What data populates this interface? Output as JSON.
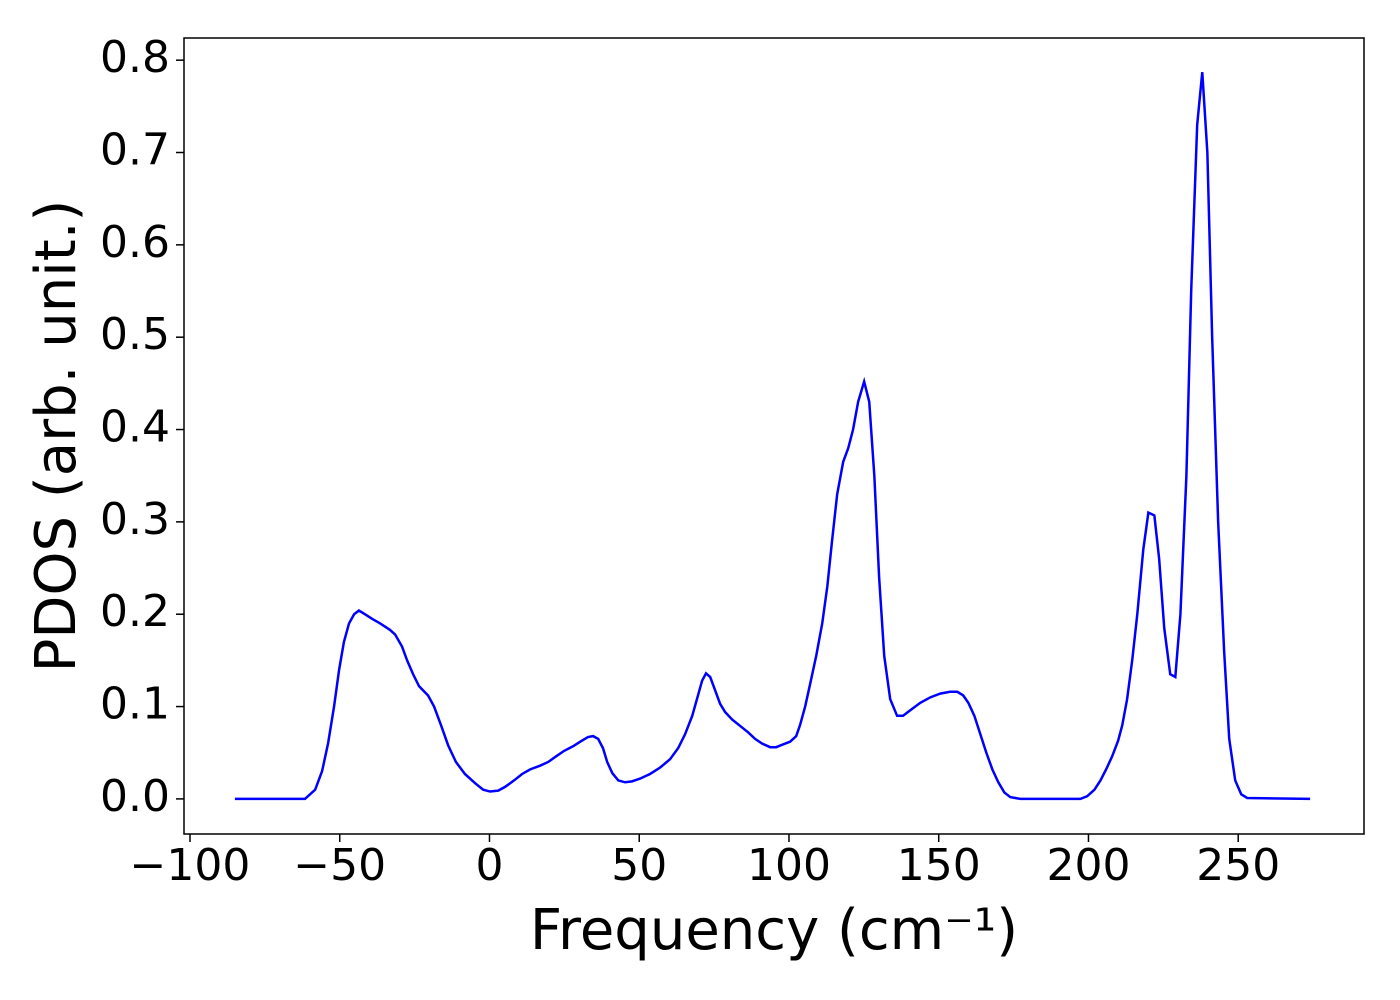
{
  "chart_data": {
    "type": "line",
    "xlabel": "Frequency (cm⁻¹)",
    "ylabel": "PDOS (arb. unit.)",
    "x": [
      -85,
      -61.6,
      -58.2,
      -55.9,
      -53.9,
      -51.9,
      -50.2,
      -48.6,
      -46.9,
      -45.2,
      -43.6,
      -41.6,
      -39.2,
      -36.5,
      -33.2,
      -31.5,
      -29.2,
      -27.5,
      -25.5,
      -23.5,
      -20.5,
      -18.5,
      -16.2,
      -13.8,
      -11.2,
      -8.2,
      -4.8,
      -2.1,
      0.2,
      2.9,
      5.2,
      8.2,
      10.9,
      13.6,
      16.9,
      19.6,
      22.2,
      24.9,
      27.9,
      30.3,
      32.9,
      34.6,
      36.3,
      37.9,
      39.3,
      41,
      43,
      45.3,
      47.6,
      50.3,
      53.6,
      57,
      60.3,
      63,
      65.3,
      67.7,
      69.7,
      71,
      72.3,
      73.7,
      75.3,
      77,
      78.7,
      81,
      83.7,
      86.4,
      88.7,
      91,
      93.7,
      95.7,
      98,
      100.4,
      102.4,
      103.7,
      105.4,
      107.1,
      109.1,
      111.1,
      112.8,
      114.4,
      116.1,
      118.1,
      119.8,
      121.4,
      123.1,
      125.1,
      126.8,
      128.5,
      130.1,
      131.8,
      133.8,
      136.1,
      138.1,
      140.5,
      143.8,
      147.2,
      150.5,
      153.8,
      156.2,
      158.2,
      159.9,
      161.9,
      163.9,
      165.9,
      167.9,
      169.9,
      171.9,
      173.9,
      177.2,
      197.3,
      199.6,
      202,
      204,
      205.9,
      207.9,
      209.9,
      211.3,
      212.9,
      214.6,
      216.3,
      218.3,
      220,
      222,
      223.6,
      225.3,
      227.3,
      229,
      230.7,
      232.7,
      234.3,
      236.3,
      238,
      239.7,
      241.3,
      243.3,
      245.3,
      247,
      249,
      251,
      253,
      274
    ],
    "series": [
      {
        "color": "#0000ff",
        "values": [
          0,
          0,
          0.01,
          0.03,
          0.06,
          0.1,
          0.14,
          0.17,
          0.19,
          0.2,
          0.204,
          0.2,
          0.195,
          0.19,
          0.183,
          0.178,
          0.165,
          0.15,
          0.135,
          0.122,
          0.112,
          0.1,
          0.08,
          0.058,
          0.04,
          0.027,
          0.017,
          0.01,
          0.008,
          0.009,
          0.013,
          0.02,
          0.027,
          0.032,
          0.036,
          0.04,
          0.046,
          0.052,
          0.057,
          0.062,
          0.067,
          0.068,
          0.065,
          0.055,
          0.04,
          0.028,
          0.02,
          0.018,
          0.019,
          0.022,
          0.027,
          0.034,
          0.043,
          0.055,
          0.07,
          0.09,
          0.113,
          0.128,
          0.136,
          0.132,
          0.118,
          0.103,
          0.094,
          0.086,
          0.079,
          0.072,
          0.065,
          0.06,
          0.056,
          0.056,
          0.059,
          0.062,
          0.068,
          0.08,
          0.1,
          0.125,
          0.155,
          0.19,
          0.23,
          0.28,
          0.33,
          0.365,
          0.38,
          0.4,
          0.43,
          0.452,
          0.43,
          0.35,
          0.24,
          0.155,
          0.108,
          0.09,
          0.09,
          0.096,
          0.104,
          0.11,
          0.114,
          0.116,
          0.116,
          0.112,
          0.104,
          0.09,
          0.07,
          0.05,
          0.032,
          0.018,
          0.007,
          0.002,
          0,
          0,
          0.003,
          0.01,
          0.02,
          0.032,
          0.046,
          0.063,
          0.08,
          0.108,
          0.15,
          0.2,
          0.27,
          0.31,
          0.307,
          0.26,
          0.185,
          0.135,
          0.132,
          0.2,
          0.35,
          0.55,
          0.73,
          0.787,
          0.7,
          0.5,
          0.3,
          0.16,
          0.065,
          0.02,
          0.005,
          0.001,
          0
        ]
      }
    ],
    "xlim": [
      -102,
      292
    ],
    "xticks": [
      {
        "value": -100,
        "label": "−100"
      },
      {
        "value": -50,
        "label": "−50"
      },
      0,
      50,
      100,
      150,
      200,
      250
    ],
    "ylim": [
      -0.038,
      0.824
    ],
    "yticks": [
      {
        "value": 0,
        "label": "0.0"
      },
      0.1,
      0.2,
      0.3,
      0.4,
      0.5,
      0.6,
      0.7,
      0.8
    ]
  }
}
